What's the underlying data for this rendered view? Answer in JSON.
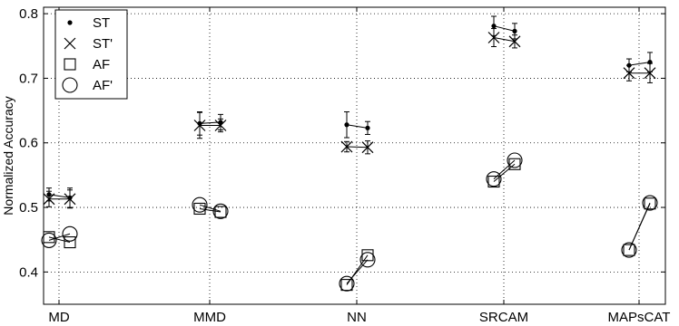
{
  "chart_data": {
    "type": "scatter",
    "title": "",
    "xlabel": "",
    "ylabel": "Normalized Accuracy",
    "ylim": [
      0.35,
      0.81
    ],
    "yticks": [
      0.4,
      0.5,
      0.6,
      0.7,
      0.8
    ],
    "ytick_labels": [
      "0.4",
      "0.5",
      "0.6",
      "0.7",
      "0.8"
    ],
    "categories": [
      "MD",
      "MMD",
      "NN",
      "SRCAM",
      "MAPsCAT"
    ],
    "grid": true,
    "legend_position": "top-left",
    "series": [
      {
        "name": "ST",
        "marker": "dot",
        "points": [
          {
            "cat": 0,
            "sub": 0,
            "y": 0.52,
            "err": 0.01
          },
          {
            "cat": 0,
            "sub": 1,
            "y": 0.515,
            "err": 0.015
          },
          {
            "cat": 1,
            "sub": 0,
            "y": 0.63,
            "err": 0.018
          },
          {
            "cat": 1,
            "sub": 1,
            "y": 0.632,
            "err": 0.012
          },
          {
            "cat": 2,
            "sub": 0,
            "y": 0.628,
            "err": 0.02
          },
          {
            "cat": 2,
            "sub": 1,
            "y": 0.623,
            "err": 0.01
          },
          {
            "cat": 3,
            "sub": 0,
            "y": 0.781,
            "err": 0.015
          },
          {
            "cat": 3,
            "sub": 1,
            "y": 0.773,
            "err": 0.012
          },
          {
            "cat": 4,
            "sub": 0,
            "y": 0.72,
            "err": 0.01
          },
          {
            "cat": 4,
            "sub": 1,
            "y": 0.725,
            "err": 0.015
          }
        ]
      },
      {
        "name": "ST'",
        "marker": "x",
        "points": [
          {
            "cat": 0,
            "sub": 0,
            "y": 0.513,
            "err": 0.012
          },
          {
            "cat": 0,
            "sub": 1,
            "y": 0.513,
            "err": 0.014
          },
          {
            "cat": 1,
            "sub": 0,
            "y": 0.627,
            "err": 0.02
          },
          {
            "cat": 1,
            "sub": 1,
            "y": 0.627,
            "err": 0.01
          },
          {
            "cat": 2,
            "sub": 0,
            "y": 0.594,
            "err": 0.008
          },
          {
            "cat": 2,
            "sub": 1,
            "y": 0.593,
            "err": 0.01
          },
          {
            "cat": 3,
            "sub": 0,
            "y": 0.763,
            "err": 0.014
          },
          {
            "cat": 3,
            "sub": 1,
            "y": 0.757,
            "err": 0.01
          },
          {
            "cat": 4,
            "sub": 0,
            "y": 0.708,
            "err": 0.012
          },
          {
            "cat": 4,
            "sub": 1,
            "y": 0.708,
            "err": 0.015
          }
        ]
      },
      {
        "name": "AF",
        "marker": "square",
        "points": [
          {
            "cat": 0,
            "sub": 0,
            "y": 0.454
          },
          {
            "cat": 0,
            "sub": 1,
            "y": 0.446
          },
          {
            "cat": 1,
            "sub": 0,
            "y": 0.498
          },
          {
            "cat": 1,
            "sub": 1,
            "y": 0.493
          },
          {
            "cat": 2,
            "sub": 0,
            "y": 0.38
          },
          {
            "cat": 2,
            "sub": 1,
            "y": 0.426
          },
          {
            "cat": 3,
            "sub": 0,
            "y": 0.54
          },
          {
            "cat": 3,
            "sub": 1,
            "y": 0.567
          },
          {
            "cat": 4,
            "sub": 0,
            "y": 0.434
          },
          {
            "cat": 4,
            "sub": 1,
            "y": 0.506
          }
        ]
      },
      {
        "name": "AF'",
        "marker": "circle",
        "points": [
          {
            "cat": 0,
            "sub": 0,
            "y": 0.449
          },
          {
            "cat": 0,
            "sub": 1,
            "y": 0.459
          },
          {
            "cat": 1,
            "sub": 0,
            "y": 0.504
          },
          {
            "cat": 1,
            "sub": 1,
            "y": 0.494
          },
          {
            "cat": 2,
            "sub": 0,
            "y": 0.382
          },
          {
            "cat": 2,
            "sub": 1,
            "y": 0.419
          },
          {
            "cat": 3,
            "sub": 0,
            "y": 0.544
          },
          {
            "cat": 3,
            "sub": 1,
            "y": 0.573
          },
          {
            "cat": 4,
            "sub": 0,
            "y": 0.434
          },
          {
            "cat": 4,
            "sub": 1,
            "y": 0.507
          }
        ]
      }
    ]
  }
}
